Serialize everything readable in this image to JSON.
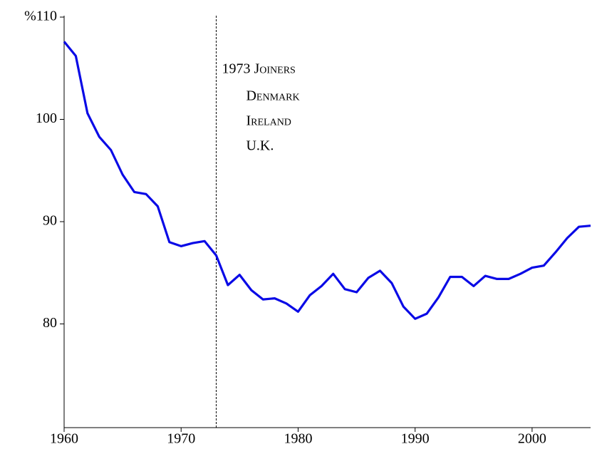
{
  "chart_data": {
    "type": "line",
    "x": [
      1960,
      1961,
      1962,
      1963,
      1964,
      1965,
      1966,
      1967,
      1968,
      1969,
      1970,
      1971,
      1972,
      1973,
      1974,
      1975,
      1976,
      1977,
      1978,
      1979,
      1980,
      1981,
      1982,
      1983,
      1984,
      1985,
      1986,
      1987,
      1988,
      1989,
      1990,
      1991,
      1992,
      1993,
      1994,
      1995,
      1996,
      1997,
      1998,
      1999,
      2000,
      2001,
      2002,
      2003,
      2004,
      2005
    ],
    "series": [
      {
        "color": "#0a0ae6",
        "values": [
          107.6,
          106.2,
          100.6,
          98.3,
          97.0,
          94.6,
          92.9,
          92.7,
          91.5,
          88.0,
          87.6,
          87.9,
          88.1,
          86.7,
          83.8,
          84.8,
          83.3,
          82.4,
          82.5,
          82.0,
          81.2,
          82.8,
          83.7,
          84.9,
          83.4,
          83.1,
          84.5,
          85.2,
          84.0,
          81.7,
          80.5,
          81.0,
          82.6,
          84.6,
          84.6,
          83.7,
          84.7,
          84.4,
          84.4,
          84.9,
          85.5,
          85.7,
          87.0,
          88.4,
          89.5,
          89.6
        ]
      }
    ],
    "xlim": [
      1960,
      2005
    ],
    "xticks": [
      1960,
      1970,
      1980,
      1990,
      2000
    ],
    "ylim": [
      70,
      110
    ],
    "yticks": [
      80,
      90,
      100,
      {
        "value": 110,
        "label": "%110"
      }
    ],
    "annotation": {
      "x": 1973,
      "title": "1973 Joiners",
      "items": [
        "Denmark",
        "Ireland",
        "U.K."
      ]
    }
  }
}
